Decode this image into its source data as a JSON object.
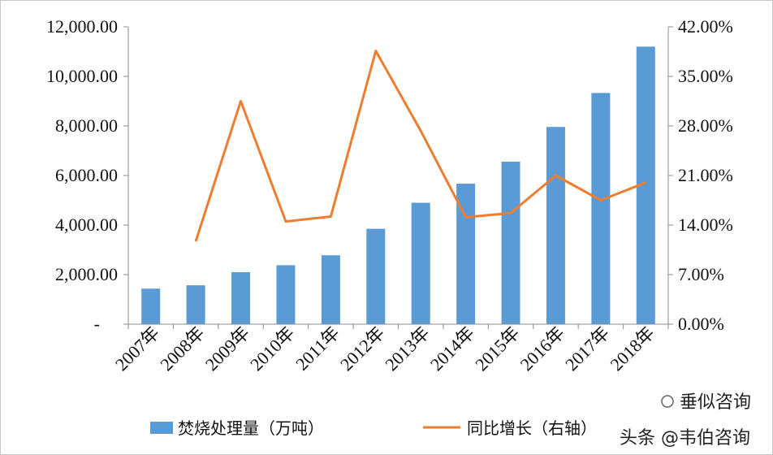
{
  "chart_data": {
    "type": "bar",
    "categories": [
      "2007年",
      "2008年",
      "2009年",
      "2010年",
      "2011年",
      "2012年",
      "2013年",
      "2014年",
      "2015年",
      "2016年",
      "2017年",
      "2018年"
    ],
    "series": [
      {
        "name": "焚烧处理量（万吨）",
        "chart": "bar",
        "axis": "left",
        "values": [
          1435,
          1570,
          2100,
          2380,
          2780,
          3850,
          4900,
          5670,
          6560,
          7960,
          9330,
          11200
        ]
      },
      {
        "name": "同比增长（右轴）",
        "chart": "line",
        "axis": "right",
        "values": [
          null,
          0.117,
          0.315,
          0.145,
          0.152,
          0.386,
          0.273,
          0.151,
          0.157,
          0.21,
          0.175,
          0.2
        ]
      }
    ],
    "y_left": {
      "min": 0,
      "max": 12000,
      "ticks": [
        0,
        2000,
        4000,
        6000,
        8000,
        10000,
        12000
      ],
      "tick_labels": [
        "-",
        "2,000.00",
        "4,000.00",
        "6,000.00",
        "8,000.00",
        "10,000.00",
        "12,000.00"
      ]
    },
    "y_right": {
      "min": 0,
      "max": 0.42,
      "ticks": [
        0,
        0.07,
        0.14,
        0.21,
        0.28,
        0.35,
        0.42
      ],
      "tick_labels": [
        "0.00%",
        "7.00%",
        "14.00%",
        "21.00%",
        "28.00%",
        "35.00%",
        "42.00%"
      ]
    },
    "grid": false,
    "legend_position": "bottom",
    "colors": {
      "bar": "#5b9bd5",
      "line": "#ed7d31"
    }
  },
  "watermark": {
    "upper": "垂似咨询",
    "lower": "头条 @韦伯咨询"
  }
}
